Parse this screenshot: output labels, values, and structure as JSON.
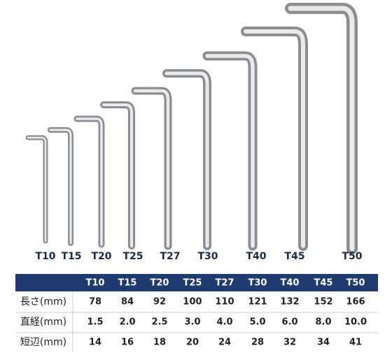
{
  "wrench_labels": [
    "T10",
    "T15",
    "T20",
    "T25",
    "T27",
    "T30",
    "T40",
    "T45",
    "T50"
  ],
  "table": {
    "header": [
      "T10",
      "T15",
      "T20",
      "T25",
      "T27",
      "T30",
      "T40",
      "T45",
      "T50"
    ],
    "rows": [
      [
        "長さ(mm)",
        "78",
        "84",
        "92",
        "100",
        "110",
        "121",
        "132",
        "152",
        "166"
      ],
      [
        "直経(mm)",
        "1.5",
        "2.0",
        "2.5",
        "3.0",
        "4.0",
        "5.0",
        "6.0",
        "8.0",
        "10.0"
      ],
      [
        "短辺(mm)",
        "14",
        "16",
        "18",
        "20",
        "24",
        "28",
        "32",
        "34",
        "41"
      ]
    ]
  }
}
